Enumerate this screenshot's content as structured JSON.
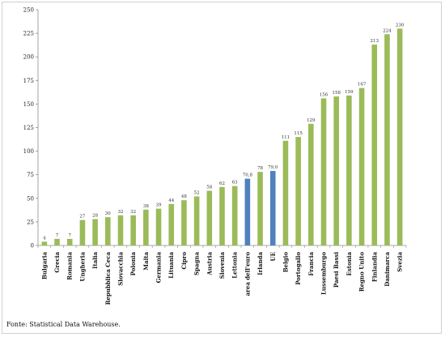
{
  "chart_data": {
    "type": "bar",
    "categories": [
      "Bulgaria",
      "Grecia",
      "Romania",
      "Ungheria",
      "Italia",
      "Repubblica Ceca",
      "Slovacchia",
      "Polonia",
      "Malta",
      "Germania",
      "Lituania",
      "Cipro",
      "Spagna",
      "Austria",
      "Slovenia",
      "Lettonia",
      "area dell'euro",
      "Irlanda",
      "UE",
      "Belgio",
      "Portogallo",
      "Francia",
      "Lussemburgo",
      "Paesi Bassi",
      "Estonia",
      "Regno Unito",
      "Finlandia",
      "Danimarca",
      "Svezia"
    ],
    "values": [
      4,
      7,
      7,
      27,
      28,
      30,
      32,
      32,
      38,
      39,
      44,
      48,
      52,
      58,
      62,
      63,
      70.8,
      78,
      79.0,
      111,
      115,
      129,
      156,
      158,
      159,
      167,
      213,
      224,
      230
    ],
    "value_labels": [
      "4",
      "7",
      "7",
      "27",
      "28",
      "30",
      "32",
      "32",
      "38",
      "39",
      "44",
      "48",
      "52",
      "58",
      "62",
      "63",
      "70,8",
      "78",
      "79,0",
      "111",
      "115",
      "129",
      "156",
      "158",
      "159",
      "167",
      "213",
      "224",
      "230"
    ],
    "highlighted": [
      "area dell'euro",
      "UE"
    ],
    "colors": {
      "default": "#9bbb59",
      "highlight": "#4f81bd"
    },
    "ylim": [
      0,
      250
    ],
    "yticks": [
      0,
      25,
      50,
      75,
      100,
      125,
      150,
      175,
      200,
      225,
      250
    ],
    "grid": false,
    "legend": "none",
    "title": "",
    "xlabel": "",
    "ylabel": ""
  },
  "source_text": "Fonte: Statistical Data Warehouse."
}
